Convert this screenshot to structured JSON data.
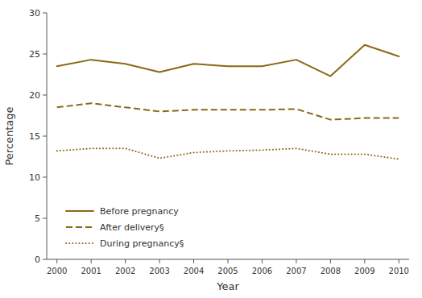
{
  "chart_data": {
    "type": "line",
    "x": [
      2000,
      2001,
      2002,
      2003,
      2004,
      2005,
      2006,
      2007,
      2008,
      2009,
      2010
    ],
    "series": [
      {
        "name": "Before pregnancy",
        "color": "#8B6914",
        "line_style": "solid",
        "values": [
          23.5,
          24.3,
          23.8,
          22.8,
          23.8,
          23.5,
          23.5,
          24.3,
          22.3,
          26.1,
          24.7
        ]
      },
      {
        "name": "After delivery§",
        "color": "#8B6914",
        "line_style": "dashed",
        "values": [
          18.5,
          19.0,
          18.5,
          18.0,
          18.2,
          18.2,
          18.2,
          18.3,
          17.0,
          17.2,
          17.2
        ]
      },
      {
        "name": "During pregnancy§",
        "color": "#8B6914",
        "line_style": "dotted",
        "values": [
          13.2,
          13.5,
          13.5,
          12.3,
          13.0,
          13.2,
          13.3,
          13.5,
          12.8,
          12.8,
          12.2
        ]
      }
    ],
    "xlim": [
      1999.7,
      2010.3
    ],
    "xticks": [
      2000,
      2001,
      2002,
      2003,
      2004,
      2005,
      2006,
      2007,
      2008,
      2009,
      2010
    ],
    "ylim": [
      0,
      30
    ],
    "yticks": [
      0,
      5,
      10,
      15,
      20,
      25,
      30
    ],
    "xlabel": "Year",
    "ylabel": "Percentage",
    "legend": "lower left"
  }
}
